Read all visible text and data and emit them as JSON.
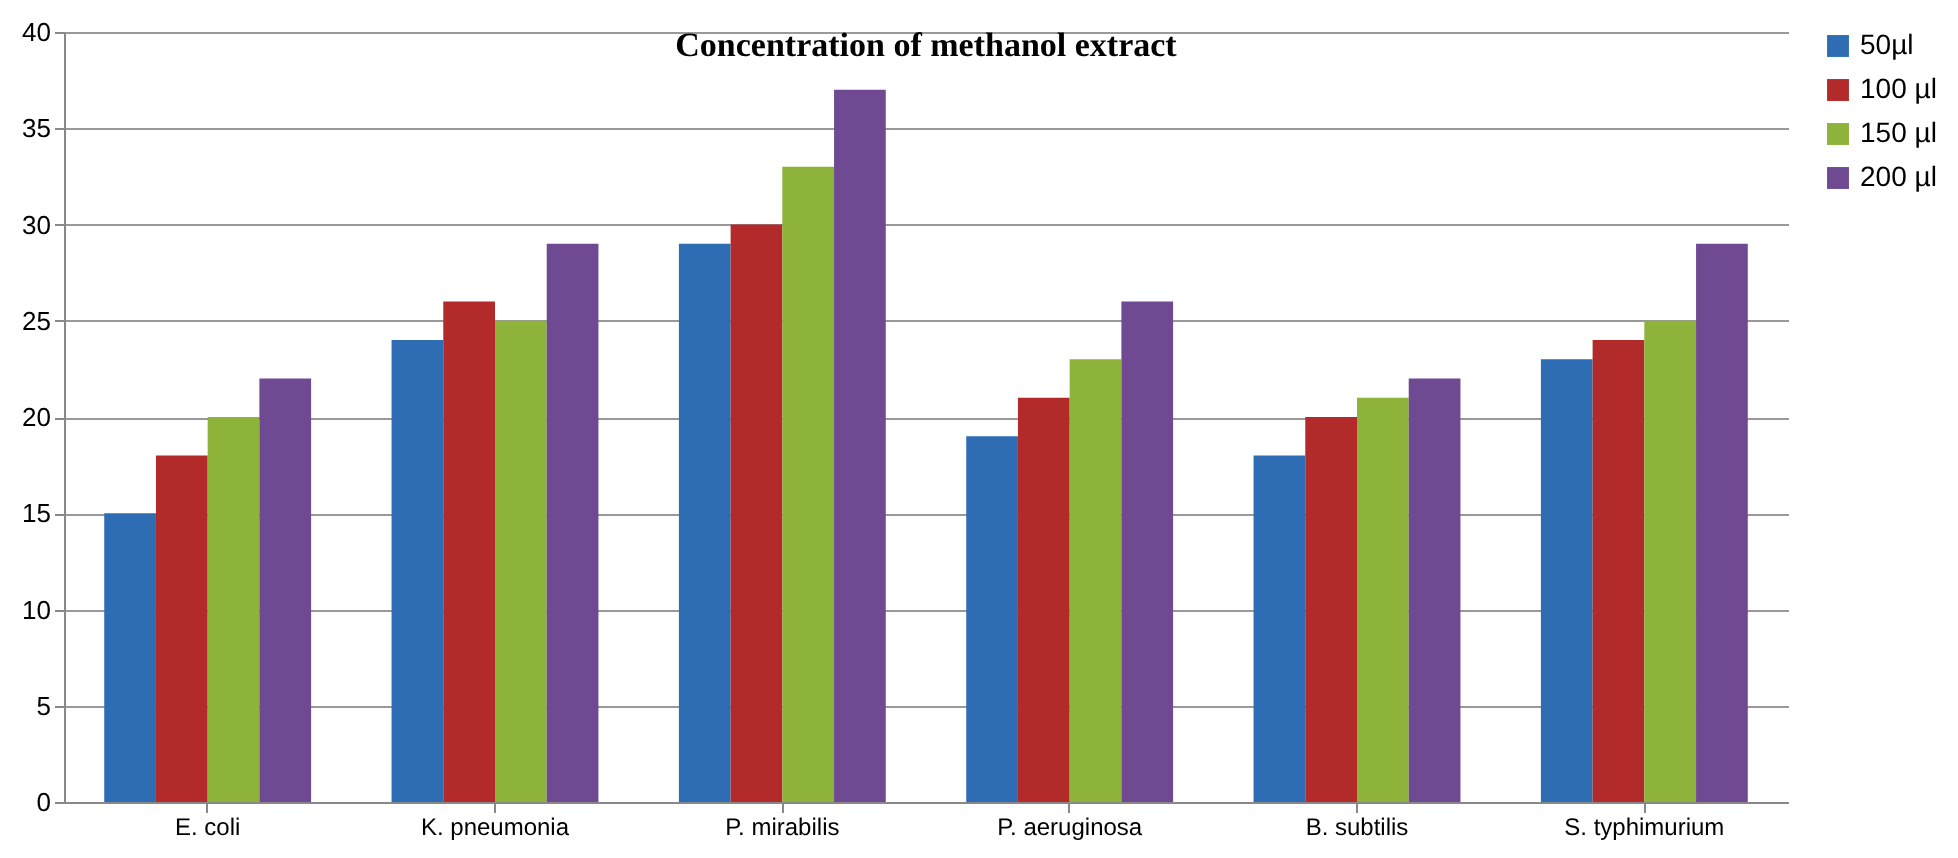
{
  "chart_data": {
    "type": "bar",
    "title": "Concentration of methanol  extract",
    "categories": [
      "E. coli",
      "K. pneumonia",
      "P. mirabilis",
      "P. aeruginosa",
      "B. subtilis",
      "S. typhimurium"
    ],
    "series": [
      {
        "name": "50µl",
        "color": "#2e6db4",
        "values": [
          15,
          24,
          29,
          19,
          18,
          23
        ]
      },
      {
        "name": "100 µl",
        "color": "#b22a2a",
        "values": [
          18,
          26,
          30,
          21,
          20,
          24
        ]
      },
      {
        "name": "150 µl",
        "color": "#8db33a",
        "values": [
          20,
          25,
          33,
          23,
          21,
          25
        ]
      },
      {
        "name": "200 µl",
        "color": "#6f4a92",
        "values": [
          22,
          29,
          37,
          26,
          22,
          29
        ]
      }
    ],
    "ylim": [
      0,
      40
    ],
    "yticks": [
      0,
      5,
      10,
      15,
      20,
      25,
      30,
      35,
      40
    ],
    "grid": "y",
    "legend": "right"
  }
}
